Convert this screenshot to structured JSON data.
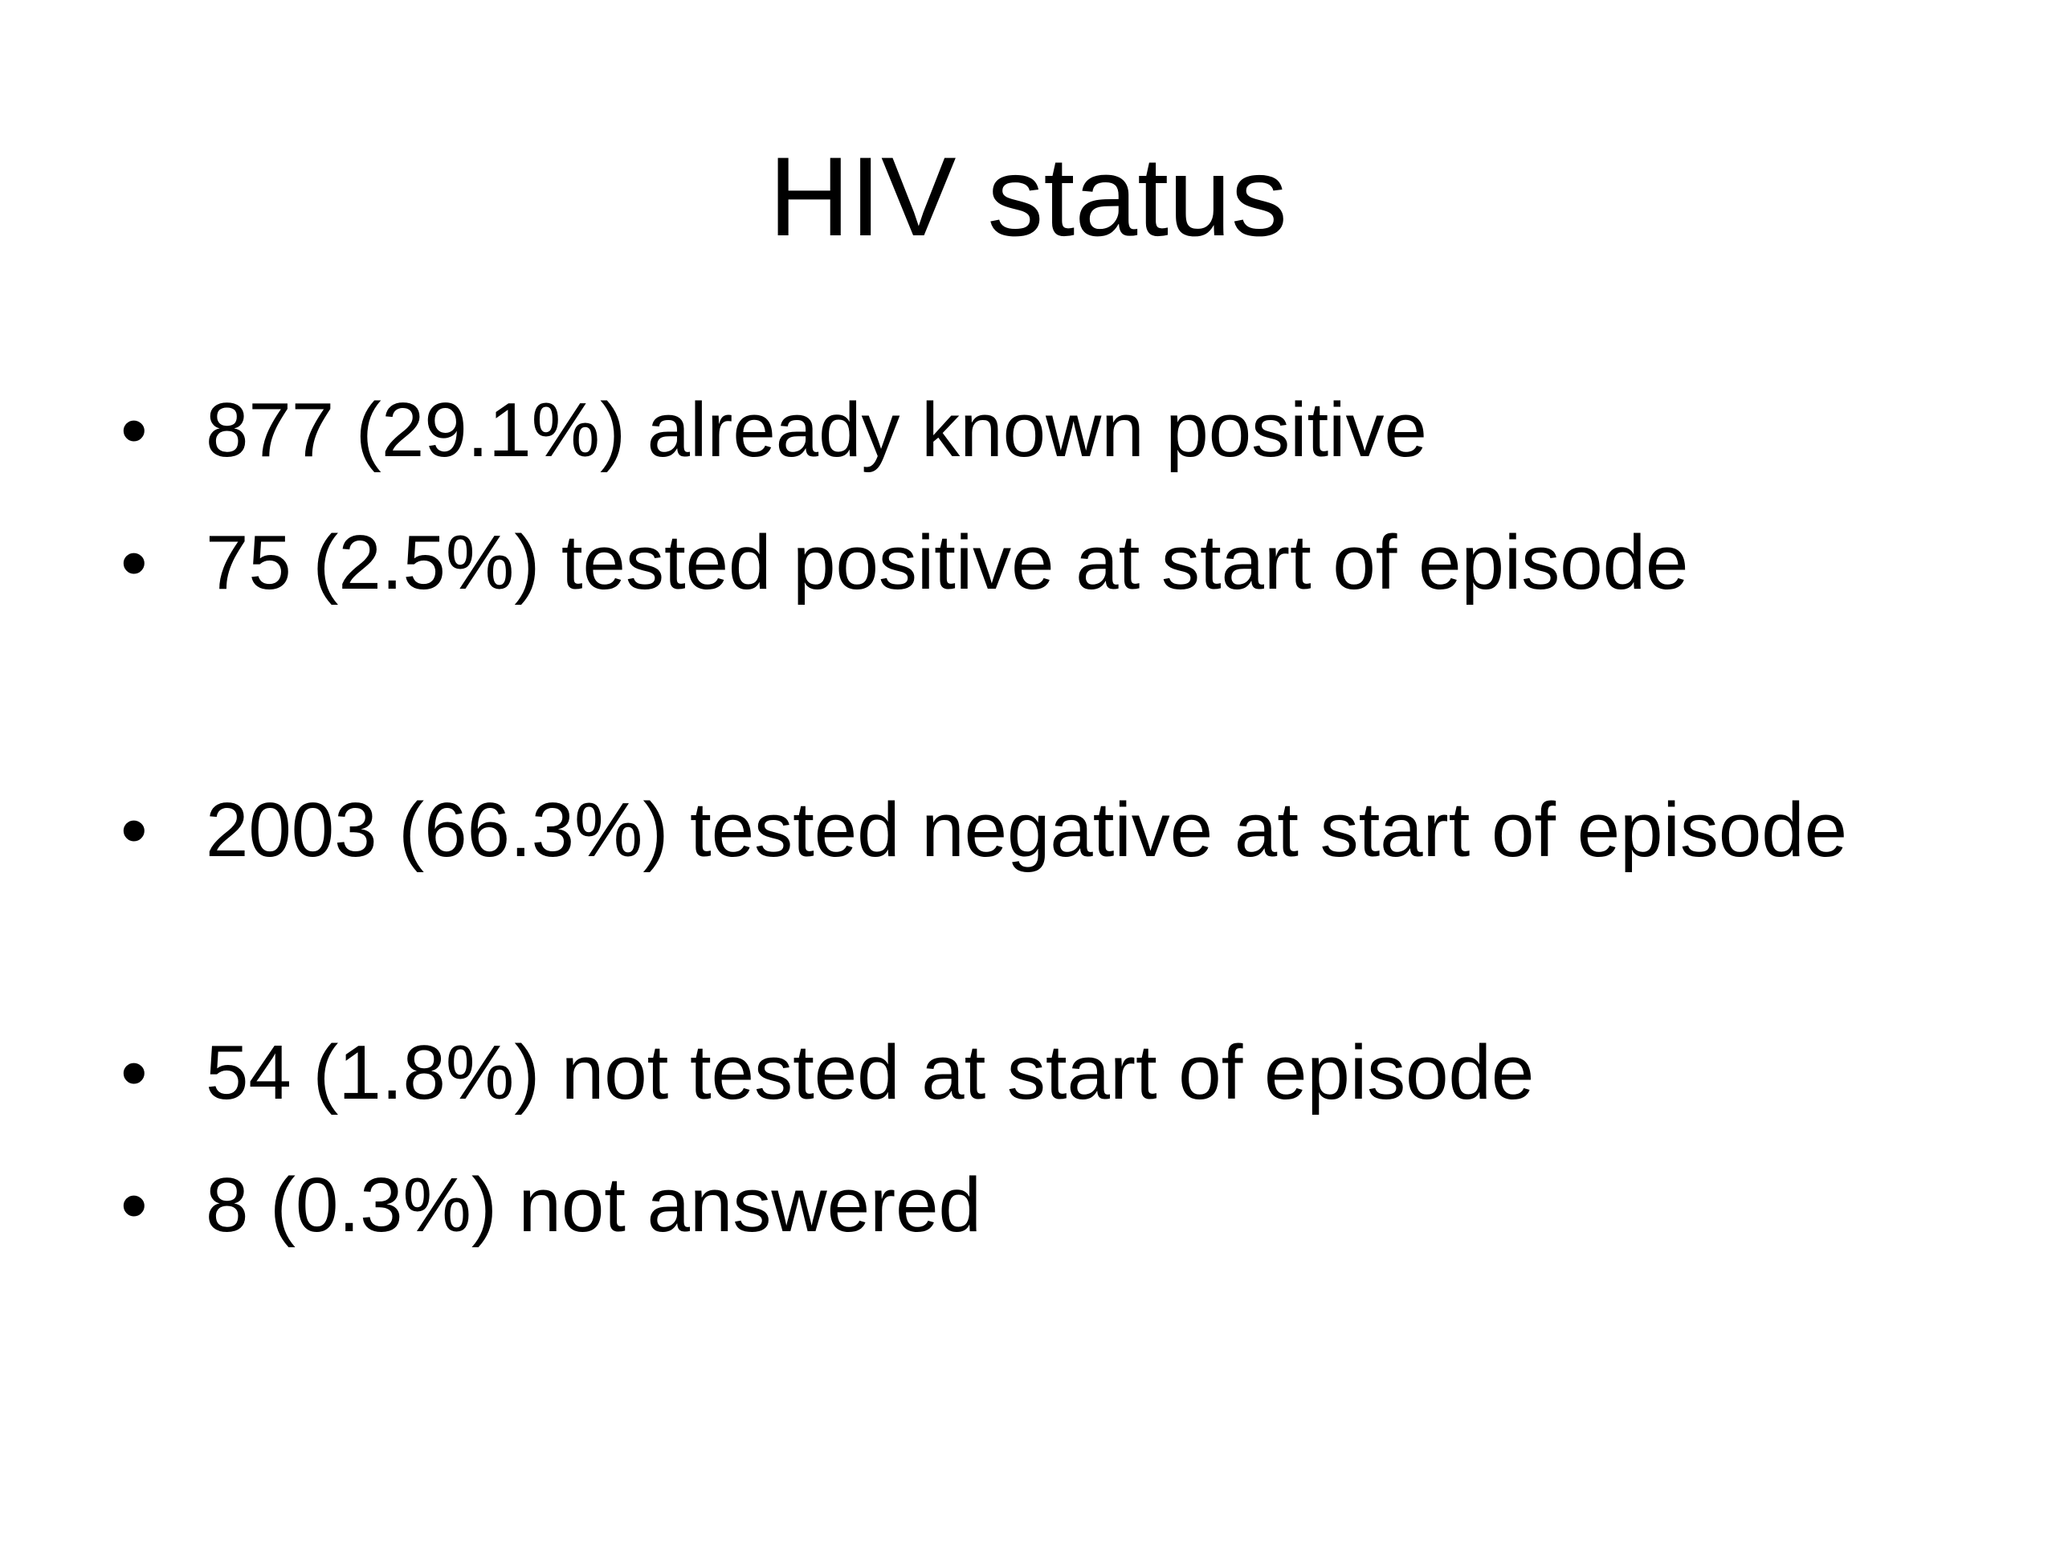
{
  "title": "HIV status",
  "bullets": [
    "877 (29.1%) already known positive",
    "75 (2.5%) tested positive at start of episode",
    "2003 (66.3%) tested negative at start of episode",
    "54 (1.8%) not tested at start of episode",
    "8 (0.3%) not answered"
  ]
}
